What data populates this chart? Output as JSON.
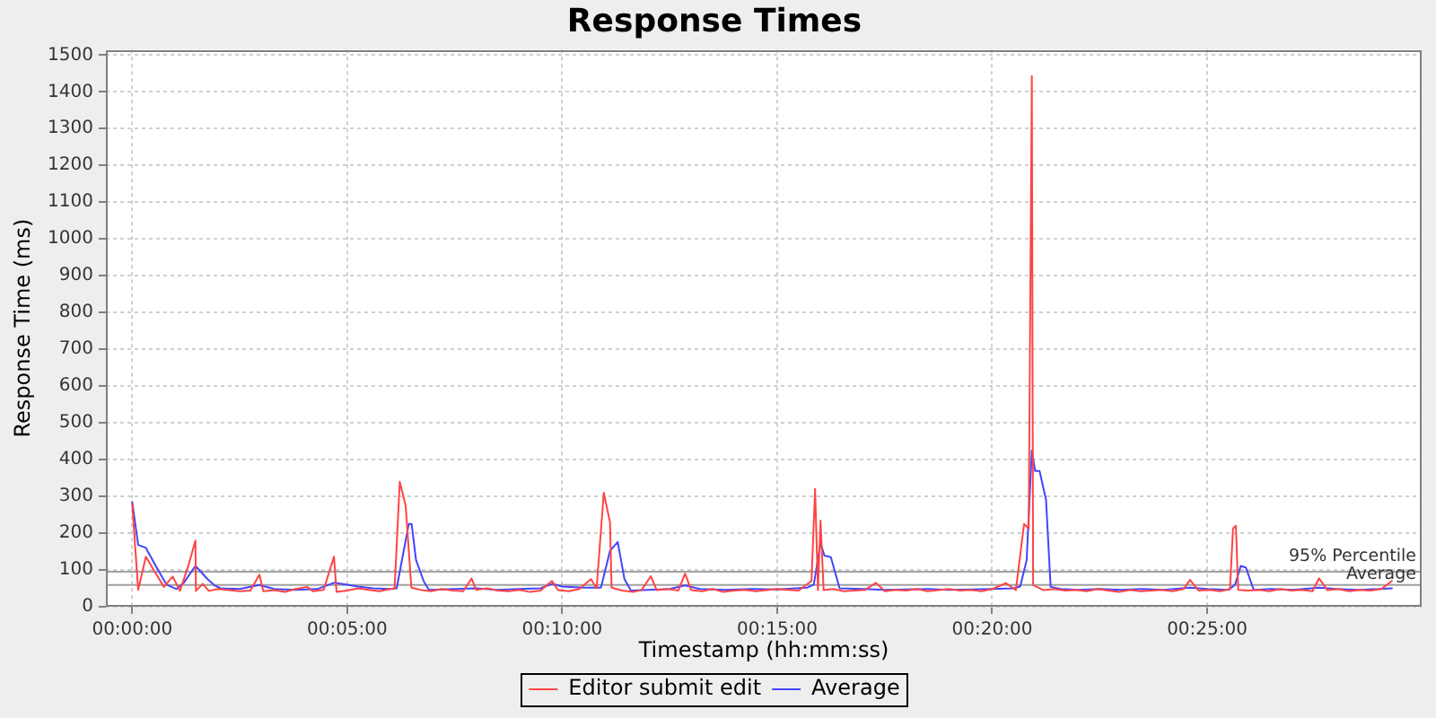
{
  "chart_data": {
    "type": "line",
    "title": "Response Times",
    "xlabel": "Timestamp (hh:mm:ss)",
    "ylabel": "Response Time (ms)",
    "xlim": [
      -0.0102,
      0.4998
    ],
    "xticks": [
      {
        "value": 0,
        "label": "00:00:00"
      },
      {
        "value": 0.08333,
        "label": "00:05:00"
      },
      {
        "value": 0.16667,
        "label": "00:10:00"
      },
      {
        "value": 0.25,
        "label": "00:15:00"
      },
      {
        "value": 0.33333,
        "label": "00:20:00"
      },
      {
        "value": 0.41667,
        "label": "00:25:00"
      }
    ],
    "ylim": [
      0,
      1515
    ],
    "yticks": [
      0,
      100,
      200,
      300,
      400,
      500,
      600,
      700,
      800,
      900,
      1000,
      1100,
      1200,
      1300,
      1400,
      1500
    ],
    "series": [
      {
        "name": "Editor submit edit",
        "color": "#ff4444",
        "x": [
          0,
          0.0023,
          0.0053,
          0.0083,
          0.0123,
          0.0157,
          0.0185,
          0.0217,
          0.0245,
          0.0247,
          0.0273,
          0.0297,
          0.0333,
          0.0375,
          0.0417,
          0.0458,
          0.0493,
          0.0508,
          0.055,
          0.0592,
          0.0633,
          0.0678,
          0.07,
          0.0742,
          0.0782,
          0.0792,
          0.0833,
          0.0875,
          0.0917,
          0.0958,
          0.1,
          0.1017,
          0.1037,
          0.106,
          0.1082,
          0.1117,
          0.1158,
          0.12,
          0.1242,
          0.1283,
          0.1315,
          0.1333,
          0.1375,
          0.1417,
          0.1458,
          0.15,
          0.1542,
          0.1583,
          0.1627,
          0.165,
          0.1692,
          0.1733,
          0.1778,
          0.18,
          0.1828,
          0.1852,
          0.1858,
          0.19,
          0.1942,
          0.1975,
          0.201,
          0.2033,
          0.2075,
          0.2117,
          0.2143,
          0.2167,
          0.2208,
          0.225,
          0.2292,
          0.2333,
          0.2375,
          0.2417,
          0.2458,
          0.25,
          0.2542,
          0.2583,
          0.2633,
          0.2647,
          0.2658,
          0.2668,
          0.268,
          0.2717,
          0.2758,
          0.28,
          0.2842,
          0.2883,
          0.2917,
          0.2958,
          0.3,
          0.3042,
          0.3083,
          0.3125,
          0.3167,
          0.3208,
          0.325,
          0.3292,
          0.3333,
          0.3387,
          0.3425,
          0.3457,
          0.3475,
          0.3487,
          0.3492,
          0.3533,
          0.3575,
          0.3617,
          0.3658,
          0.37,
          0.3742,
          0.3783,
          0.3825,
          0.3867,
          0.3908,
          0.395,
          0.3992,
          0.4033,
          0.4075,
          0.41,
          0.4133,
          0.4175,
          0.4217,
          0.4255,
          0.4267,
          0.4278,
          0.4287,
          0.4325,
          0.4367,
          0.4408,
          0.445,
          0.4492,
          0.4533,
          0.4575,
          0.46,
          0.4633,
          0.4675,
          0.4717,
          0.4758,
          0.48,
          0.4842,
          0.4883
        ],
        "values": [
          280,
          46,
          136,
          100,
          54,
          82,
          43,
          110,
          180,
          43,
          62,
          43,
          48,
          45,
          42,
          44,
          87,
          42,
          45,
          40,
          48,
          54,
          42,
          46,
          136,
          40,
          44,
          50,
          46,
          42,
          48,
          50,
          340,
          274,
          52,
          46,
          42,
          48,
          44,
          42,
          77,
          46,
          50,
          44,
          42,
          46,
          40,
          44,
          70,
          45,
          42,
          48,
          75,
          50,
          310,
          229,
          52,
          44,
          40,
          46,
          83,
          45,
          48,
          44,
          90,
          45,
          42,
          48,
          40,
          44,
          46,
          42,
          45,
          48,
          46,
          44,
          70,
          320,
          45,
          234,
          45,
          48,
          42,
          44,
          46,
          65,
          42,
          46,
          44,
          48,
          42,
          45,
          48,
          44,
          46,
          42,
          48,
          64,
          45,
          225,
          212,
          1443,
          59,
          45,
          48,
          44,
          46,
          42,
          48,
          44,
          40,
          46,
          42,
          44,
          46,
          42,
          48,
          73,
          44,
          46,
          42,
          48,
          213,
          220,
          46,
          44,
          46,
          42,
          48,
          44,
          46,
          42,
          77,
          45,
          48,
          42,
          46,
          44,
          48,
          70
        ]
      },
      {
        "name": "Average",
        "color": "#4444ff",
        "x": [
          0,
          0.0023,
          0.0053,
          0.0092,
          0.0133,
          0.0172,
          0.02,
          0.0245,
          0.0292,
          0.0317,
          0.0342,
          0.0417,
          0.0493,
          0.055,
          0.0633,
          0.0717,
          0.0782,
          0.0833,
          0.0875,
          0.0933,
          0.1,
          0.1025,
          0.1072,
          0.1083,
          0.11,
          0.113,
          0.115,
          0.125,
          0.1333,
          0.1417,
          0.15,
          0.1583,
          0.1627,
          0.1667,
          0.175,
          0.1817,
          0.1852,
          0.1882,
          0.1908,
          0.1933,
          0.2,
          0.2083,
          0.2143,
          0.22,
          0.23,
          0.24,
          0.25,
          0.2617,
          0.2642,
          0.2668,
          0.2683,
          0.2708,
          0.2742,
          0.2833,
          0.2917,
          0.3,
          0.3083,
          0.3167,
          0.325,
          0.3333,
          0.3417,
          0.3442,
          0.3467,
          0.3487,
          0.35,
          0.3517,
          0.3542,
          0.356,
          0.36,
          0.3667,
          0.375,
          0.3833,
          0.3917,
          0.4,
          0.41,
          0.4167,
          0.425,
          0.4275,
          0.4297,
          0.4317,
          0.4347,
          0.4417,
          0.45,
          0.46,
          0.4667,
          0.475,
          0.4833,
          0.4883
        ],
        "values": [
          285,
          168,
          160,
          110,
          60,
          48,
          65,
          111,
          75,
          59,
          50,
          48,
          59,
          48,
          46,
          48,
          65,
          60,
          55,
          50,
          48,
          50,
          225,
          225,
          127,
          69,
          46,
          48,
          50,
          46,
          48,
          50,
          62,
          55,
          52,
          52,
          152,
          176,
          75,
          44,
          46,
          48,
          58,
          48,
          46,
          48,
          47,
          52,
          60,
          173,
          139,
          135,
          50,
          48,
          46,
          47,
          48,
          46,
          47,
          48,
          50,
          55,
          127,
          425,
          369,
          369,
          291,
          54,
          48,
          46,
          48,
          46,
          48,
          46,
          52,
          48,
          46,
          60,
          111,
          106,
          46,
          48,
          46,
          52,
          48,
          46,
          48,
          50
        ]
      }
    ],
    "ref_lines": [
      {
        "axis": "y",
        "value": 95,
        "label": "95% Percentile",
        "color": "#a0a0a0"
      },
      {
        "axis": "y",
        "value": 59,
        "label": "Average",
        "color": "#a0a0a0"
      }
    ],
    "grid": true,
    "legend": "bottom",
    "marker": "none"
  }
}
